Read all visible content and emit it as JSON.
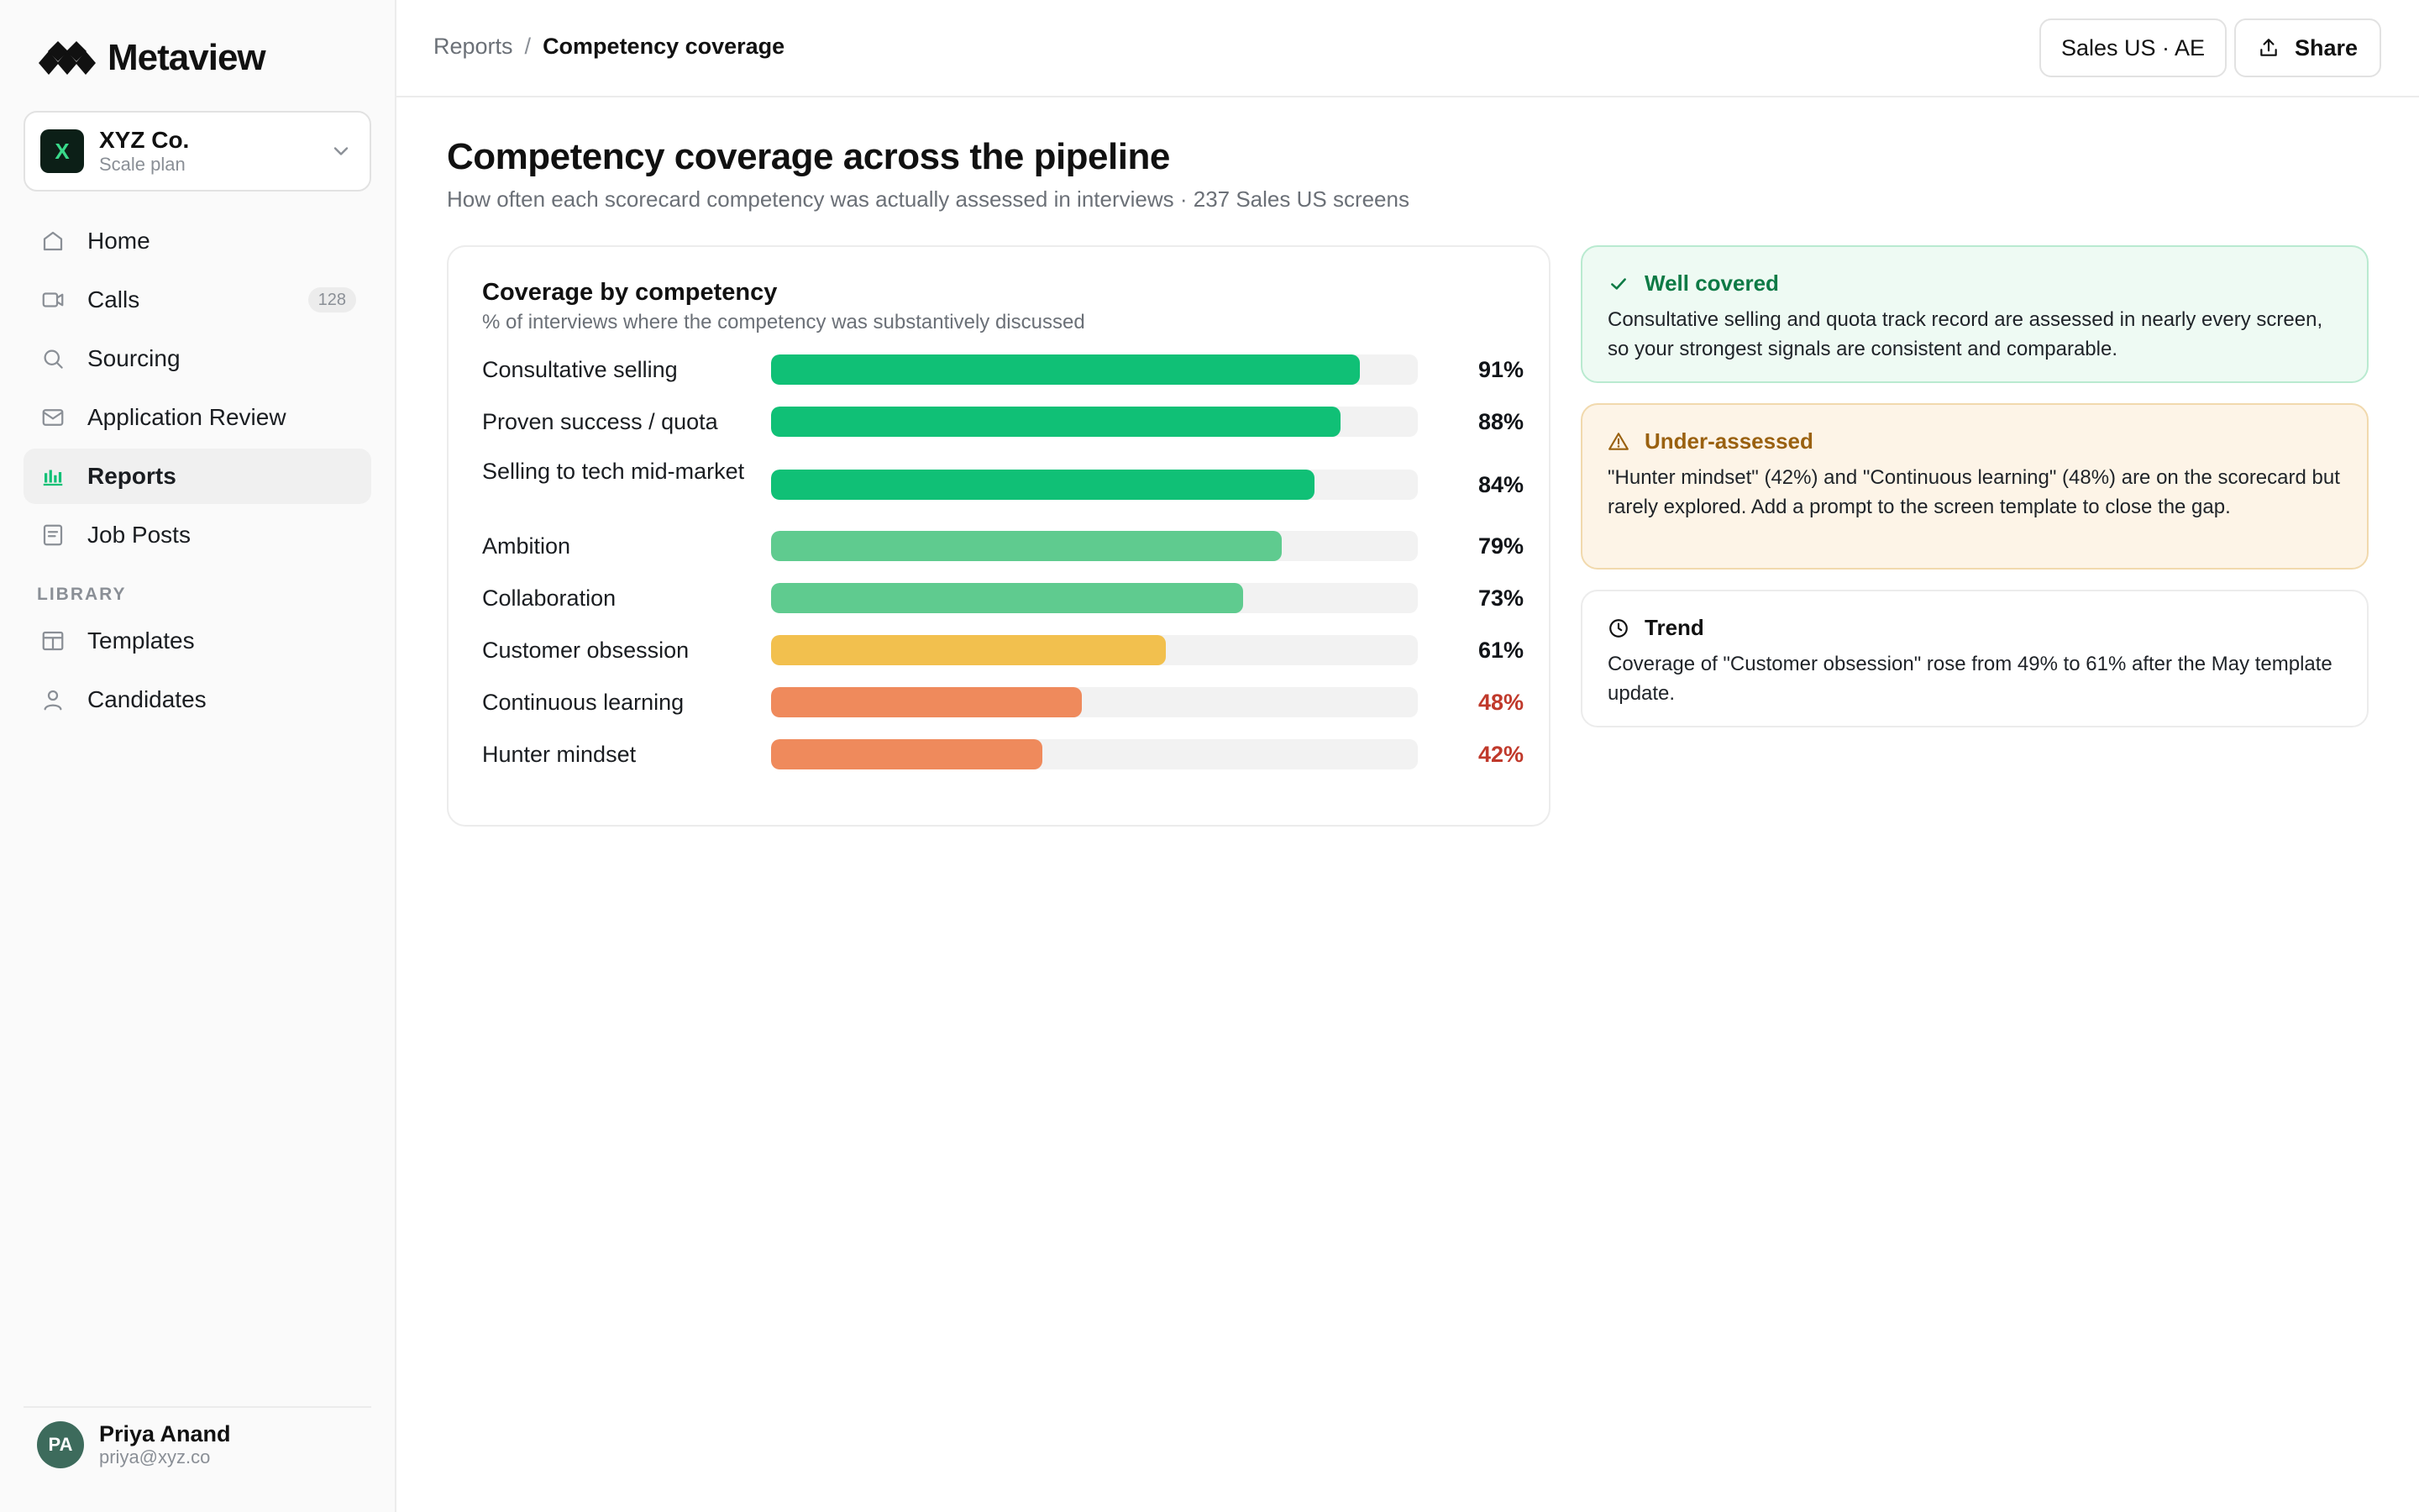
{
  "app": {
    "brand": "Metaview",
    "org": {
      "initial": "X",
      "name": "XYZ Co.",
      "plan": "Scale plan"
    }
  },
  "sidebar": {
    "items": [
      {
        "label": "Home",
        "icon": "home-icon"
      },
      {
        "label": "Calls",
        "icon": "video-icon",
        "count": "128"
      },
      {
        "label": "Sourcing",
        "icon": "search-icon"
      },
      {
        "label": "Application Review",
        "icon": "mail-icon"
      },
      {
        "label": "Reports",
        "icon": "bar-chart-icon",
        "active": true
      },
      {
        "label": "Job Posts",
        "icon": "document-icon"
      }
    ],
    "section_label": "LIBRARY",
    "library_items": [
      {
        "label": "Templates",
        "icon": "template-icon"
      },
      {
        "label": "Candidates",
        "icon": "person-icon"
      }
    ]
  },
  "user": {
    "initials": "PA",
    "name": "Priya Anand",
    "email": "priya@xyz.co"
  },
  "header": {
    "breadcrumb_parent": "Reports",
    "breadcrumb_separator": "/",
    "breadcrumb_current": "Competency coverage",
    "filter_label": "Sales US · AE",
    "share_label": "Share"
  },
  "main": {
    "title": "Competency coverage across the pipeline",
    "subtitle": "How often each scorecard competency was actually assessed in interviews · 237 Sales US screens"
  },
  "chart_data": {
    "type": "bar",
    "orientation": "horizontal",
    "title": "Coverage by competency",
    "subtitle": "% of interviews where the competency was substantively discussed",
    "xlim": [
      0,
      100
    ],
    "categories": [
      "Consultative selling",
      "Proven success / quota",
      "Selling to tech mid-market",
      "Ambition",
      "Collaboration",
      "Customer obsession",
      "Continuous learning",
      "Hunter mindset"
    ],
    "values": [
      91,
      88,
      84,
      79,
      73,
      61,
      48,
      42
    ],
    "value_labels": [
      "91%",
      "88%",
      "84%",
      "79%",
      "73%",
      "61%",
      "48%",
      "42%"
    ],
    "bar_colors": [
      "#10c076",
      "#10c076",
      "#10c076",
      "#5fcb8f",
      "#5fcb8f",
      "#f2c04e",
      "#ef8a5c",
      "#ef8a5c"
    ],
    "label_colors": [
      "#111418",
      "#111418",
      "#111418",
      "#111418",
      "#111418",
      "#111418",
      "#c0392b",
      "#c0392b"
    ],
    "grid": false
  },
  "insights": {
    "well_covered": {
      "title": "Well covered",
      "icon": "check-icon",
      "body": "Consultative selling and quota track record are assessed in nearly every screen, so your strongest signals are consistent and comparable."
    },
    "under_assessed": {
      "title": "Under-assessed",
      "icon": "warning-icon",
      "body": "\"Hunter mindset\" (42%) and \"Continuous learning\" (48%) are on the scorecard but rarely explored. Add a prompt to the screen template to close the gap."
    },
    "trend": {
      "title": "Trend",
      "icon": "clock-icon",
      "body": "Coverage of \"Customer obsession\" rose from 49% to 61% after the May template update."
    }
  },
  "colors": {
    "accent": "#10c076",
    "warning": "#9a6110",
    "danger": "#c0392b"
  }
}
